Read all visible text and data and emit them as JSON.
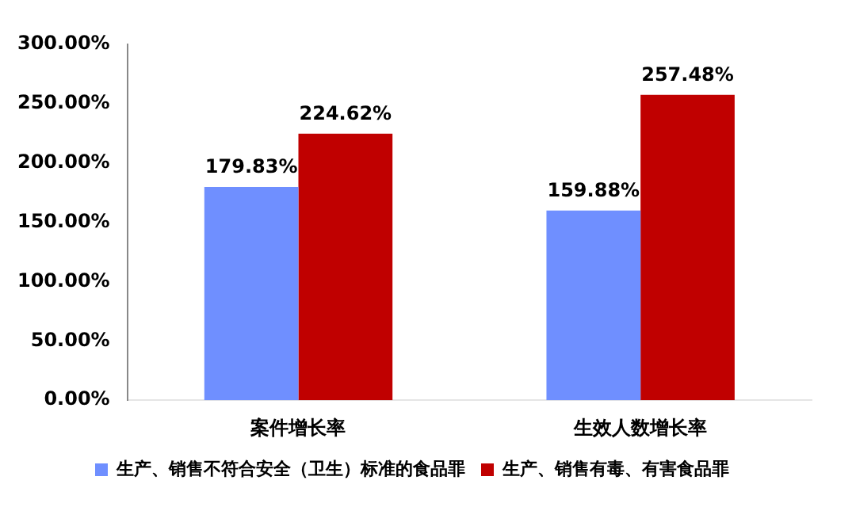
{
  "chart_data": {
    "type": "bar",
    "categories": [
      "案件增长率",
      "生效人数增长率"
    ],
    "series": [
      {
        "name": "生产、销售不符合安全（卫生）标准的食品罪",
        "color": "#6f8fff",
        "values": [
          179.83,
          159.88
        ],
        "value_labels": [
          "179.83%",
          "159.88%"
        ]
      },
      {
        "name": "生产、销售有毒、有害食品罪",
        "color": "#c00000",
        "values": [
          224.62,
          257.48
        ],
        "value_labels": [
          "224.62%",
          "257.48%"
        ]
      }
    ],
    "ylim": [
      0,
      300
    ],
    "yticks": [
      {
        "value": 0,
        "label": "0.00%"
      },
      {
        "value": 50,
        "label": "50.00%"
      },
      {
        "value": 100,
        "label": "100.00%"
      },
      {
        "value": 150,
        "label": "150.00%"
      },
      {
        "value": 200,
        "label": "200.00%"
      },
      {
        "value": 250,
        "label": "250.00%"
      },
      {
        "value": 300,
        "label": "300.00%"
      }
    ],
    "grid": false,
    "legend": "bottom"
  }
}
